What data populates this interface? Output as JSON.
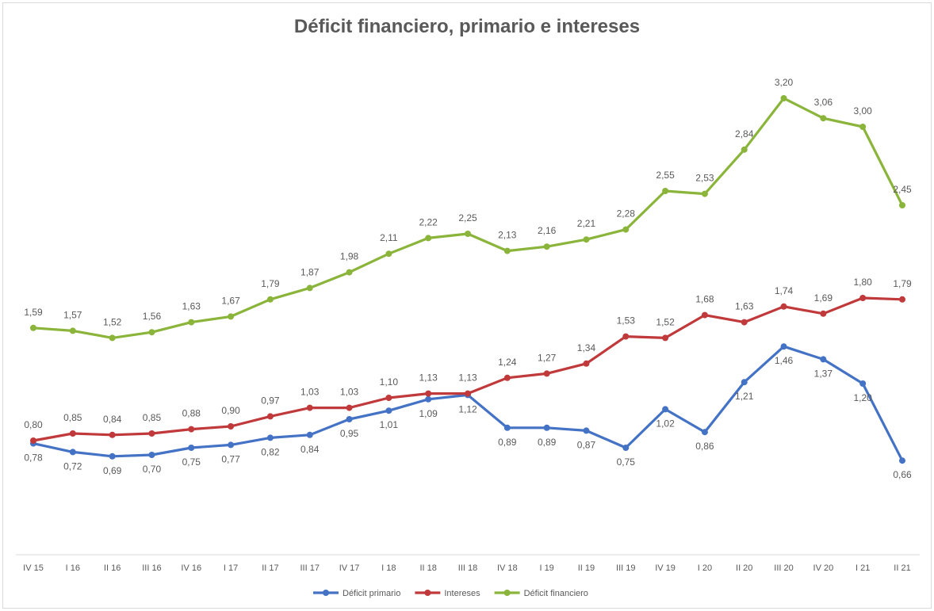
{
  "chart_data": {
    "type": "line",
    "title": "Déficit financiero, primario e intereses",
    "xlabel": "",
    "ylabel": "",
    "categories": [
      "IV 15",
      "I 16",
      "II 16",
      "III 16",
      "IV 16",
      "I 17",
      "II 17",
      "III 17",
      "IV 17",
      "I 18",
      "II 18",
      "III 18",
      "IV 18",
      "I 19",
      "II 19",
      "III 19",
      "IV 19",
      "I 20",
      "II 20",
      "III 20",
      "IV 20",
      "I 21",
      "II 21"
    ],
    "ylim": [
      0,
      3.5
    ],
    "grid": false,
    "legend_position": "bottom",
    "series": [
      {
        "name": "Déficit primario",
        "color": "#4472c4",
        "values": [
          0.78,
          0.72,
          0.69,
          0.7,
          0.75,
          0.77,
          0.82,
          0.84,
          0.95,
          1.01,
          1.09,
          1.12,
          0.89,
          0.89,
          0.87,
          0.75,
          1.02,
          0.86,
          1.21,
          1.46,
          1.37,
          1.2,
          0.66
        ],
        "labels": [
          "0,78",
          "0,72",
          "0,69",
          "0,70",
          "0,75",
          "0,77",
          "0,82",
          "0,84",
          "0,95",
          "1,01",
          "1,09",
          "1,12",
          "0,89",
          "0,89",
          "0,87",
          "0,75",
          "1,02",
          "0,86",
          "1,21",
          "1,46",
          "1,37",
          "1,20",
          "0,66"
        ]
      },
      {
        "name": "Intereses",
        "color": "#c0393b",
        "values": [
          0.8,
          0.85,
          0.84,
          0.85,
          0.88,
          0.9,
          0.97,
          1.03,
          1.03,
          1.1,
          1.13,
          1.13,
          1.24,
          1.27,
          1.34,
          1.53,
          1.52,
          1.68,
          1.63,
          1.74,
          1.69,
          1.8,
          1.79
        ],
        "labels": [
          "0,80",
          "0,85",
          "0,84",
          "0,85",
          "0,88",
          "0,90",
          "0,97",
          "1,03",
          "1,03",
          "1,10",
          "1,13",
          "1,13",
          "1,24",
          "1,27",
          "1,34",
          "1,53",
          "1,52",
          "1,68",
          "1,63",
          "1,74",
          "1,69",
          "1,80",
          "1,79"
        ]
      },
      {
        "name": "Déficit financiero",
        "color": "#8ab43a",
        "values": [
          1.59,
          1.57,
          1.52,
          1.56,
          1.63,
          1.67,
          1.79,
          1.87,
          1.98,
          2.11,
          2.22,
          2.25,
          2.13,
          2.16,
          2.21,
          2.28,
          2.55,
          2.53,
          2.84,
          3.2,
          3.06,
          3.0,
          2.45
        ],
        "labels": [
          "1,59",
          "1,57",
          "1,52",
          "1,56",
          "1,63",
          "1,67",
          "1,79",
          "1,87",
          "1,98",
          "2,11",
          "2,22",
          "2,25",
          "2,13",
          "2,16",
          "2,21",
          "2,28",
          "2,55",
          "2,53",
          "2,84",
          "3,20",
          "3,06",
          "3,00",
          "2,45"
        ]
      }
    ]
  }
}
